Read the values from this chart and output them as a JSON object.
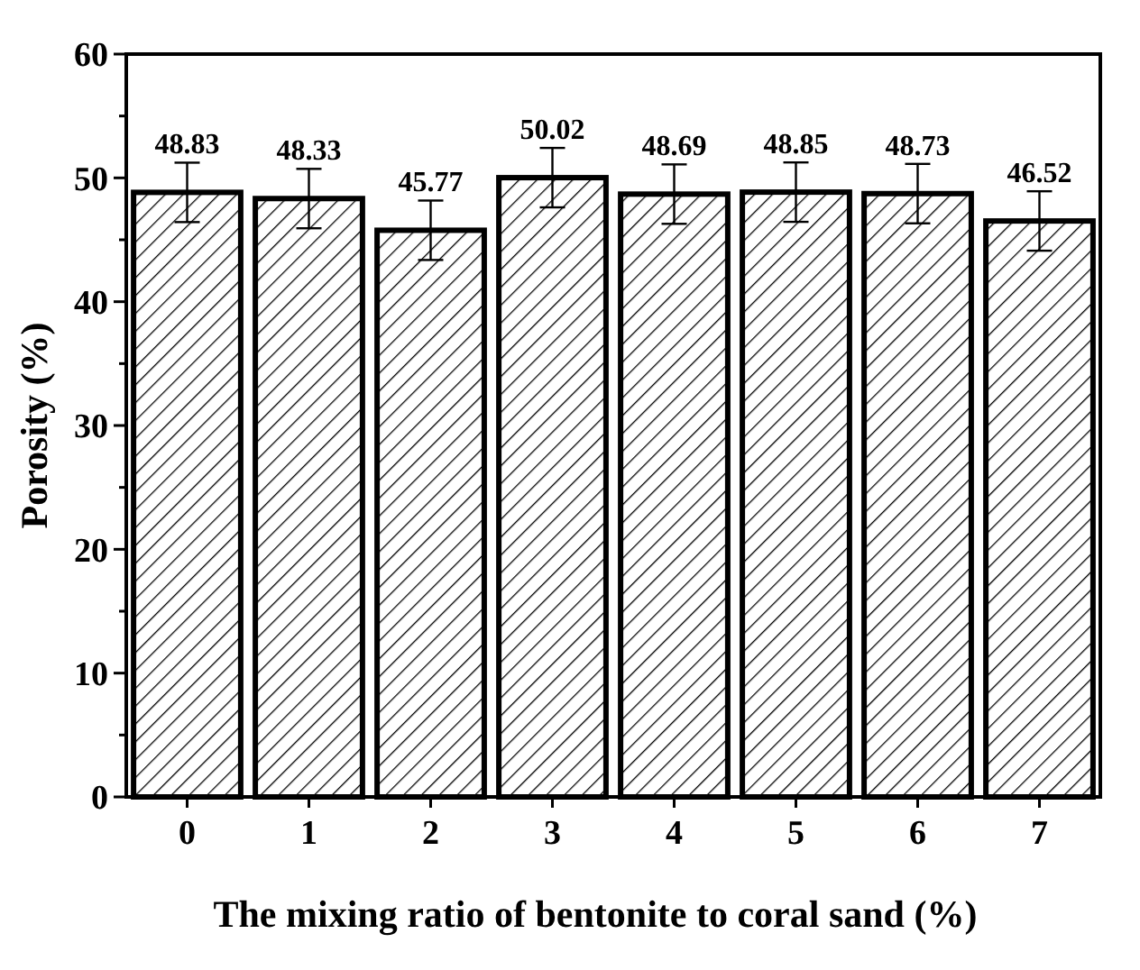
{
  "chart_data": {
    "type": "bar",
    "xlabel": "The mixing ratio of bentonite to coral sand (%)",
    "ylabel": "Porosity (%)",
    "categories": [
      "0",
      "1",
      "2",
      "3",
      "4",
      "5",
      "6",
      "7"
    ],
    "values": [
      48.83,
      48.33,
      45.77,
      50.02,
      48.69,
      48.85,
      48.73,
      46.52
    ],
    "errors": [
      2.4,
      2.4,
      2.4,
      2.4,
      2.4,
      2.4,
      2.4,
      2.4
    ],
    "color": "#000000",
    "data_labels": true,
    "grid": false,
    "ylim": [
      0,
      60
    ],
    "yticks": [
      0,
      {
        "value": 5,
        "label": null
      },
      10,
      {
        "value": 15,
        "label": null
      },
      20,
      {
        "value": 25,
        "label": null
      },
      30,
      {
        "value": 35,
        "label": null
      },
      40,
      {
        "value": 45,
        "label": null
      },
      50,
      {
        "value": 55,
        "label": null
      },
      60
    ]
  }
}
